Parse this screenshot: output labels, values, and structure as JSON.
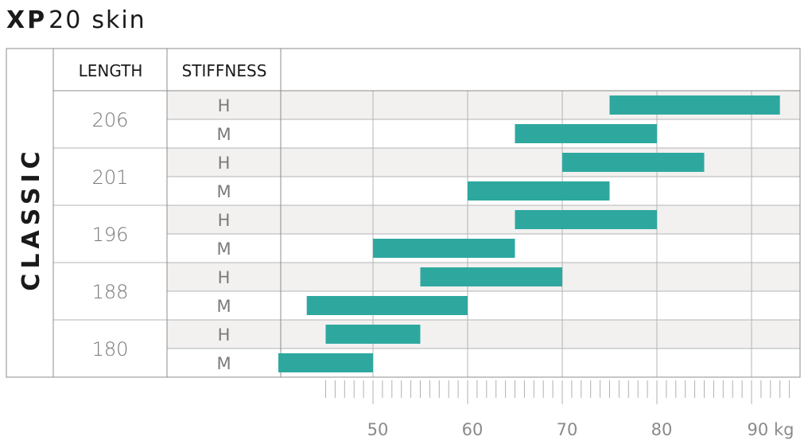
{
  "title": {
    "brand": "XP",
    "model": "20",
    "variant": "skin"
  },
  "chart_data": {
    "type": "bar",
    "orientation": "horizontal-range",
    "category_label": "CLASSIC",
    "column_headers": {
      "length": "LENGTH",
      "stiffness": "STIFFNESS"
    },
    "unit": "kg",
    "xlim": [
      40,
      95
    ],
    "ticks": [
      {
        "value": 50,
        "label": "50"
      },
      {
        "value": 60,
        "label": "60"
      },
      {
        "value": 70,
        "label": "70"
      },
      {
        "value": 80,
        "label": "80"
      },
      {
        "value": 90,
        "label": "90 kg"
      }
    ],
    "minor_tick_step": 1,
    "minor_ticks_range": [
      45,
      94
    ],
    "grid": true,
    "rows": [
      {
        "length": "206",
        "stiffness": "H",
        "range": [
          75,
          93
        ]
      },
      {
        "length": "206",
        "stiffness": "M",
        "range": [
          65,
          80
        ]
      },
      {
        "length": "201",
        "stiffness": "H",
        "range": [
          70,
          85
        ]
      },
      {
        "length": "201",
        "stiffness": "M",
        "range": [
          60,
          75
        ]
      },
      {
        "length": "196",
        "stiffness": "H",
        "range": [
          65,
          80
        ]
      },
      {
        "length": "196",
        "stiffness": "M",
        "range": [
          50,
          65
        ]
      },
      {
        "length": "188",
        "stiffness": "H",
        "range": [
          55,
          70
        ]
      },
      {
        "length": "188",
        "stiffness": "M",
        "range": [
          43,
          60
        ]
      },
      {
        "length": "180",
        "stiffness": "H",
        "range": [
          45,
          55
        ]
      },
      {
        "length": "180",
        "stiffness": "M",
        "range": [
          40,
          50
        ]
      }
    ],
    "colors": {
      "bar": "#2ea89f",
      "band": "#f2f1f0",
      "grid": "#b4b4b4",
      "border": "#8c8c8c"
    }
  }
}
